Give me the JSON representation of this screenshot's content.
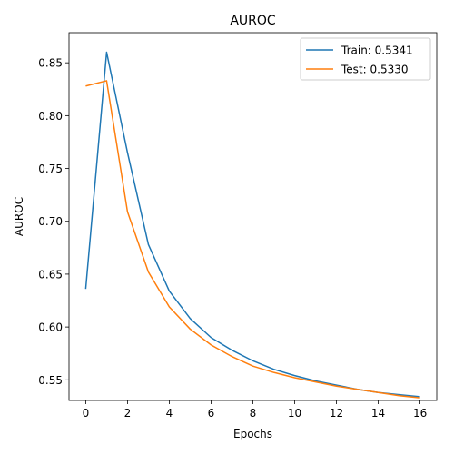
{
  "chart_data": {
    "type": "line",
    "title": "AUROC",
    "xlabel": "Epochs",
    "ylabel": "AUROC",
    "xlim": [
      -0.8,
      16.8
    ],
    "ylim": [
      0.5305,
      0.8785
    ],
    "xticks": [
      0,
      2,
      4,
      6,
      8,
      10,
      12,
      14,
      16
    ],
    "yticks": [
      0.55,
      0.6,
      0.65,
      0.7,
      0.75,
      0.8,
      0.85
    ],
    "ytick_labels": [
      "0.55",
      "0.60",
      "0.65",
      "0.70",
      "0.75",
      "0.80",
      "0.85"
    ],
    "grid": false,
    "legend_position": "top-right",
    "x": [
      0,
      1,
      2,
      3,
      4,
      5,
      6,
      7,
      8,
      9,
      10,
      11,
      12,
      13,
      14,
      15,
      16
    ],
    "series": [
      {
        "name": "Train: 0.5341",
        "color": "#1f77b4",
        "values": [
          0.636,
          0.86,
          0.765,
          0.678,
          0.634,
          0.608,
          0.59,
          0.578,
          0.568,
          0.56,
          0.554,
          0.549,
          0.545,
          0.541,
          0.538,
          0.536,
          0.534
        ]
      },
      {
        "name": "Test: 0.5330",
        "color": "#ff7f0e",
        "values": [
          0.828,
          0.833,
          0.709,
          0.652,
          0.619,
          0.598,
          0.583,
          0.572,
          0.563,
          0.557,
          0.552,
          0.548,
          0.544,
          0.541,
          0.538,
          0.535,
          0.533
        ]
      }
    ]
  }
}
